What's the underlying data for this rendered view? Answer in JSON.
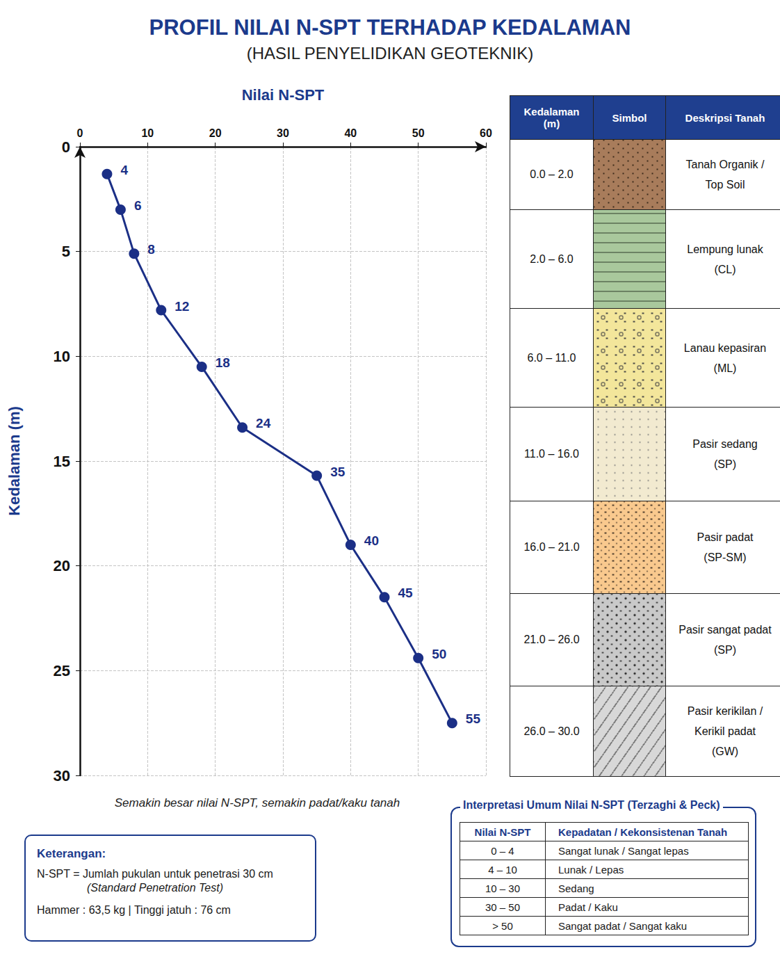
{
  "header": {
    "title": "PROFIL NILAI N-SPT TERHADAP KEDALAMAN",
    "subtitle": "(HASIL PENYELIDIKAN GEOTEKNIK)"
  },
  "chart_data": {
    "type": "line",
    "x_label": "Nilai N-SPT",
    "y_label": "Kedalaman (m)",
    "x": [
      4,
      6,
      8,
      12,
      18,
      24,
      35,
      40,
      45,
      50,
      55
    ],
    "values": [
      1.3,
      3.0,
      5.1,
      7.8,
      10.5,
      13.4,
      15.7,
      19.0,
      21.5,
      24.4,
      27.5
    ],
    "xlim": [
      0,
      60
    ],
    "xticks": [
      0,
      10,
      20,
      30,
      40,
      50,
      60
    ],
    "ylim": [
      0,
      30
    ],
    "yticks": [
      0,
      5,
      10,
      15,
      20,
      25,
      30
    ],
    "color": "#1b2f86",
    "marker": "circle",
    "grid": true,
    "data_labels": true,
    "caption": "Semakin besar nilai N-SPT, semakin padat/kaku tanah"
  },
  "soil_table": {
    "columns": [
      "Kedalaman (m)",
      "Simbol",
      "Deskripsi Tanah"
    ],
    "rows": [
      {
        "depth": "0.0 – 2.0",
        "description": [
          "Tanah Organik /",
          "Top Soil"
        ]
      },
      {
        "depth": "2.0 – 6.0",
        "description": [
          "Lempung lunak",
          "(CL)"
        ]
      },
      {
        "depth": "6.0 – 11.0",
        "description": [
          "Lanau kepasiran",
          "(ML)"
        ]
      },
      {
        "depth": "11.0 – 16.0",
        "description": [
          "Pasir sedang",
          "(SP)"
        ]
      },
      {
        "depth": "16.0 – 21.0",
        "description": [
          "Pasir padat",
          "(SP-SM)"
        ]
      },
      {
        "depth": "21.0 – 26.0",
        "description": [
          "Pasir sangat padat",
          "(SP)"
        ]
      },
      {
        "depth": "26.0 – 30.0",
        "description": [
          "Pasir kerikilan /",
          "Kerikil padat",
          "(GW)"
        ]
      }
    ]
  },
  "notes": {
    "title": "Keterangan:",
    "lines": [
      "N-SPT = Jumlah pukulan untuk penetrasi 30 cm",
      "(Standard Penetration Test)",
      "Hammer : 63,5 kg  |  Tinggi jatuh : 76 cm"
    ]
  },
  "interpretation": {
    "title": "Interpretasi Umum Nilai N-SPT (Terzaghi & Peck)",
    "columns": [
      "Nilai N-SPT",
      "Kepadatan / Kekonsistenan Tanah"
    ],
    "rows": [
      [
        "0 – 4",
        "Sangat lunak / Sangat lepas"
      ],
      [
        "4 – 10",
        "Lunak / Lepas"
      ],
      [
        "10 – 30",
        "Sedang"
      ],
      [
        "30 – 50",
        "Padat / Kaku"
      ],
      [
        "> 50",
        "Sangat padat / Sangat kaku"
      ]
    ]
  }
}
